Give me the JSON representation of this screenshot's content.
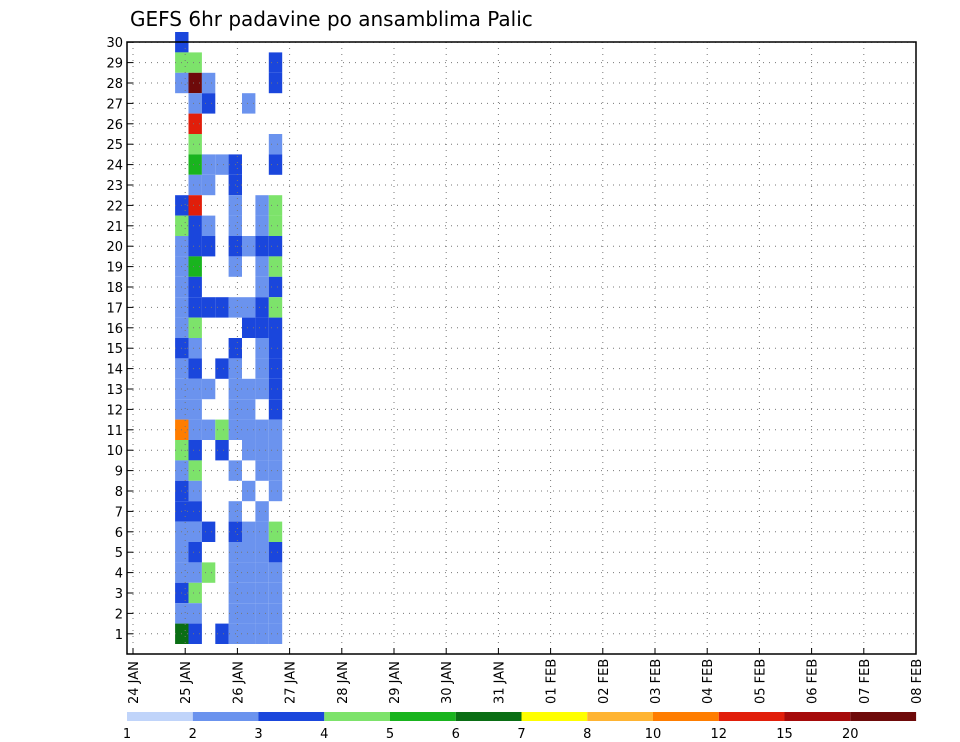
{
  "chart_data": {
    "type": "heatmap",
    "title": "GEFS 6hr padavine po ansamblima Palic",
    "xlabel": "",
    "ylabel": "",
    "x_tick_labels": [
      "24 JAN",
      "25 JAN",
      "26 JAN",
      "27 JAN",
      "28 JAN",
      "29 JAN",
      "30 JAN",
      "31 JAN",
      "01 FEB",
      "02 FEB",
      "03 FEB",
      "04 FEB",
      "05 FEB",
      "06 FEB",
      "07 FEB",
      "08 FEB"
    ],
    "y_tick_labels": [
      "1",
      "2",
      "3",
      "4",
      "5",
      "6",
      "7",
      "8",
      "9",
      "10",
      "11",
      "12",
      "13",
      "14",
      "15",
      "16",
      "17",
      "18",
      "19",
      "20",
      "21",
      "22",
      "23",
      "24",
      "25",
      "26",
      "27",
      "28",
      "29",
      "30"
    ],
    "xlim": [
      0,
      59
    ],
    "ylim": [
      1,
      30
    ],
    "grid": true,
    "colorbar": {
      "labels": [
        "1",
        "2",
        "3",
        "4",
        "5",
        "6",
        "7",
        "8",
        "10",
        "12",
        "15",
        "20"
      ],
      "colors": [
        "#c0d4fa",
        "#6b93ee",
        "#1a46dc",
        "#7de36b",
        "#19b41e",
        "#0a6e14",
        "#ffff00",
        "#ffb432",
        "#ff7d00",
        "#e11e0a",
        "#a50a0a",
        "#6e0a0a"
      ]
    },
    "cells": [
      [
        0,
        30,
        2
      ],
      [
        0,
        29,
        3
      ],
      [
        0,
        28,
        1
      ],
      [
        0,
        22,
        2
      ],
      [
        0,
        21,
        3
      ],
      [
        0,
        20,
        1
      ],
      [
        0,
        19,
        1
      ],
      [
        0,
        18,
        1
      ],
      [
        0,
        17,
        1
      ],
      [
        0,
        16,
        1
      ],
      [
        0,
        15,
        2
      ],
      [
        0,
        14,
        1
      ],
      [
        0,
        13,
        1
      ],
      [
        0,
        12,
        1
      ],
      [
        0,
        11,
        8
      ],
      [
        0,
        10,
        3
      ],
      [
        0,
        9,
        1
      ],
      [
        0,
        8,
        2
      ],
      [
        0,
        7,
        2
      ],
      [
        0,
        6,
        1
      ],
      [
        0,
        5,
        1
      ],
      [
        0,
        4,
        1
      ],
      [
        0,
        3,
        2
      ],
      [
        0,
        2,
        1
      ],
      [
        0,
        1,
        5
      ],
      [
        1,
        29,
        3
      ],
      [
        1,
        28,
        11
      ],
      [
        1,
        27,
        1
      ],
      [
        1,
        26,
        9
      ],
      [
        1,
        25,
        3
      ],
      [
        1,
        24,
        4
      ],
      [
        1,
        23,
        1
      ],
      [
        1,
        22,
        9
      ],
      [
        1,
        21,
        2
      ],
      [
        1,
        20,
        2
      ],
      [
        1,
        19,
        4
      ],
      [
        1,
        18,
        2
      ],
      [
        1,
        17,
        2
      ],
      [
        1,
        16,
        3
      ],
      [
        1,
        15,
        1
      ],
      [
        1,
        14,
        2
      ],
      [
        1,
        13,
        1
      ],
      [
        1,
        12,
        1
      ],
      [
        1,
        11,
        1
      ],
      [
        1,
        10,
        2
      ],
      [
        1,
        9,
        3
      ],
      [
        1,
        8,
        1
      ],
      [
        1,
        7,
        2
      ],
      [
        1,
        6,
        1
      ],
      [
        1,
        5,
        2
      ],
      [
        1,
        4,
        1
      ],
      [
        1,
        3,
        3
      ],
      [
        1,
        2,
        1
      ],
      [
        1,
        1,
        2
      ],
      [
        2,
        28,
        1
      ],
      [
        2,
        27,
        2
      ],
      [
        2,
        24,
        1
      ],
      [
        2,
        23,
        1
      ],
      [
        2,
        21,
        1
      ],
      [
        2,
        20,
        2
      ],
      [
        2,
        17,
        2
      ],
      [
        2,
        13,
        1
      ],
      [
        2,
        11,
        1
      ],
      [
        2,
        6,
        2
      ],
      [
        2,
        4,
        3
      ],
      [
        3,
        24,
        1
      ],
      [
        3,
        17,
        2
      ],
      [
        3,
        14,
        2
      ],
      [
        3,
        11,
        3
      ],
      [
        3,
        10,
        2
      ],
      [
        3,
        1,
        2
      ],
      [
        4,
        24,
        2
      ],
      [
        4,
        23,
        2
      ],
      [
        4,
        22,
        1
      ],
      [
        4,
        21,
        1
      ],
      [
        4,
        20,
        2
      ],
      [
        4,
        19,
        1
      ],
      [
        4,
        17,
        1
      ],
      [
        4,
        15,
        2
      ],
      [
        4,
        14,
        1
      ],
      [
        4,
        13,
        1
      ],
      [
        4,
        12,
        1
      ],
      [
        4,
        11,
        1
      ],
      [
        4,
        9,
        1
      ],
      [
        4,
        7,
        1
      ],
      [
        4,
        6,
        2
      ],
      [
        4,
        5,
        1
      ],
      [
        4,
        4,
        1
      ],
      [
        4,
        3,
        1
      ],
      [
        4,
        2,
        1
      ],
      [
        4,
        1,
        1
      ],
      [
        5,
        27,
        1
      ],
      [
        5,
        20,
        1
      ],
      [
        5,
        17,
        1
      ],
      [
        5,
        16,
        2
      ],
      [
        5,
        13,
        1
      ],
      [
        5,
        12,
        1
      ],
      [
        5,
        11,
        1
      ],
      [
        5,
        10,
        1
      ],
      [
        5,
        8,
        1
      ],
      [
        5,
        6,
        1
      ],
      [
        5,
        5,
        1
      ],
      [
        5,
        4,
        1
      ],
      [
        5,
        3,
        1
      ],
      [
        5,
        2,
        1
      ],
      [
        5,
        1,
        1
      ],
      [
        6,
        22,
        1
      ],
      [
        6,
        21,
        1
      ],
      [
        6,
        20,
        2
      ],
      [
        6,
        19,
        1
      ],
      [
        6,
        18,
        1
      ],
      [
        6,
        17,
        2
      ],
      [
        6,
        16,
        2
      ],
      [
        6,
        15,
        1
      ],
      [
        6,
        14,
        1
      ],
      [
        6,
        13,
        1
      ],
      [
        6,
        11,
        1
      ],
      [
        6,
        10,
        1
      ],
      [
        6,
        9,
        1
      ],
      [
        6,
        7,
        1
      ],
      [
        6,
        6,
        1
      ],
      [
        6,
        5,
        1
      ],
      [
        6,
        4,
        1
      ],
      [
        6,
        3,
        1
      ],
      [
        6,
        2,
        1
      ],
      [
        6,
        1,
        1
      ],
      [
        7,
        29,
        2
      ],
      [
        7,
        28,
        2
      ],
      [
        7,
        25,
        1
      ],
      [
        7,
        24,
        2
      ],
      [
        7,
        22,
        3
      ],
      [
        7,
        21,
        3
      ],
      [
        7,
        20,
        2
      ],
      [
        7,
        19,
        3
      ],
      [
        7,
        18,
        2
      ],
      [
        7,
        17,
        3
      ],
      [
        7,
        16,
        2
      ],
      [
        7,
        15,
        2
      ],
      [
        7,
        14,
        2
      ],
      [
        7,
        13,
        2
      ],
      [
        7,
        12,
        2
      ],
      [
        7,
        11,
        1
      ],
      [
        7,
        10,
        1
      ],
      [
        7,
        9,
        1
      ],
      [
        7,
        8,
        1
      ],
      [
        7,
        6,
        3
      ],
      [
        7,
        5,
        2
      ],
      [
        7,
        4,
        1
      ],
      [
        7,
        3,
        1
      ],
      [
        7,
        2,
        1
      ],
      [
        7,
        1,
        1
      ]
    ]
  }
}
